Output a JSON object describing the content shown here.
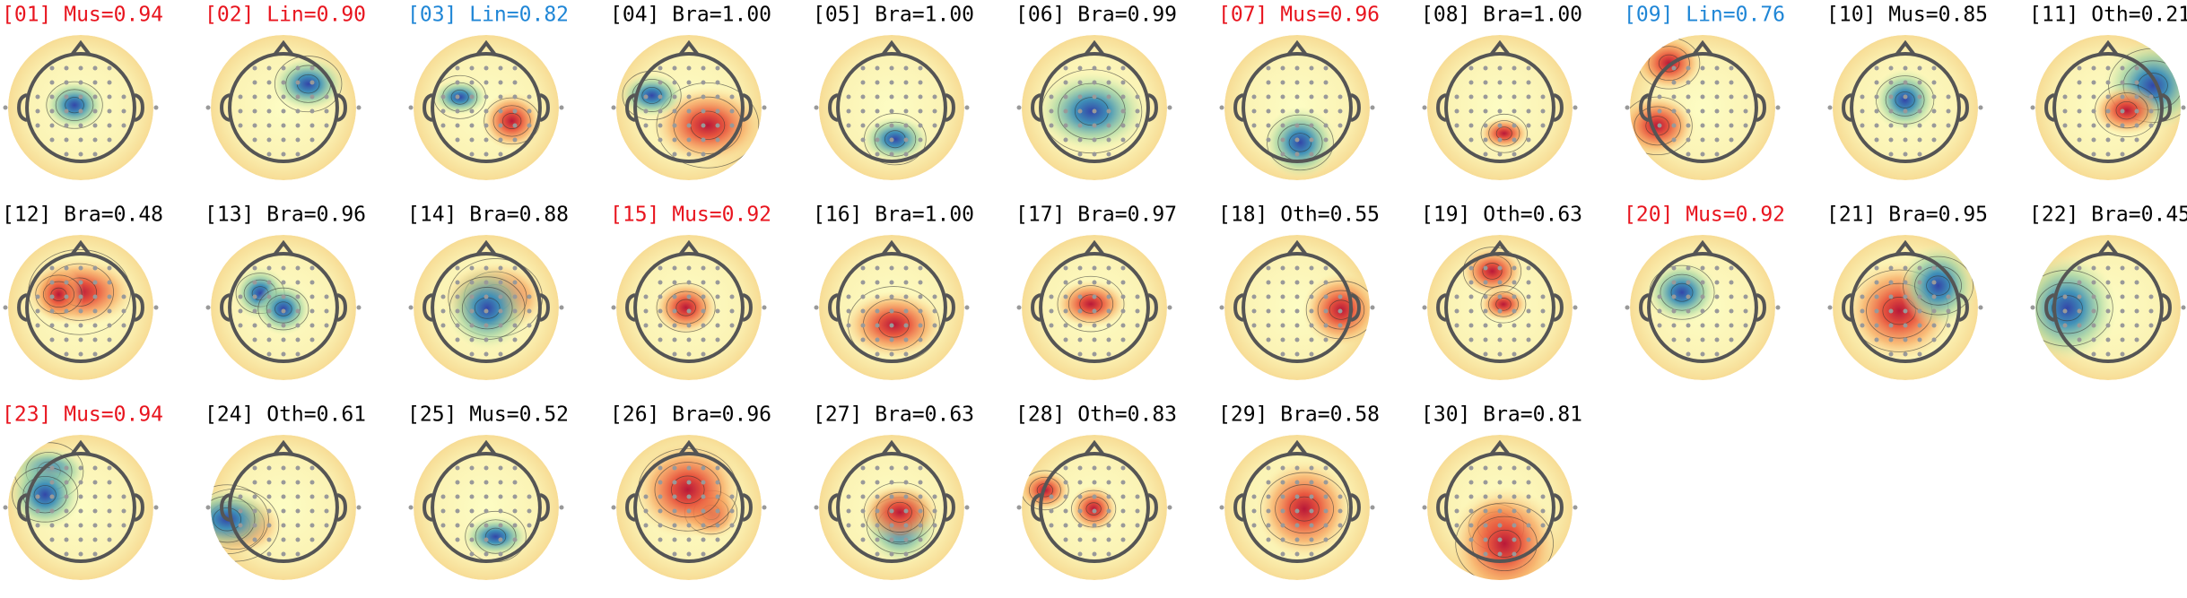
{
  "components": [
    {
      "label": "[01] Mus=0.94",
      "color": "#e8141e"
    },
    {
      "label": "[02] Lin=0.90",
      "color": "#e8141e"
    },
    {
      "label": "[03] Lin=0.82",
      "color": "#1f86d6"
    },
    {
      "label": "[04] Bra=1.00",
      "color": "#000000"
    },
    {
      "label": "[05] Bra=1.00",
      "color": "#000000"
    },
    {
      "label": "[06] Bra=0.99",
      "color": "#000000"
    },
    {
      "label": "[07] Mus=0.96",
      "color": "#e8141e"
    },
    {
      "label": "[08] Bra=1.00",
      "color": "#000000"
    },
    {
      "label": "[09] Lin=0.76",
      "color": "#1f86d6"
    },
    {
      "label": "[10] Mus=0.85",
      "color": "#000000"
    },
    {
      "label": "[11] Oth=0.21",
      "color": "#000000"
    },
    {
      "label": "[12] Bra=0.48",
      "color": "#000000"
    },
    {
      "label": "[13] Bra=0.96",
      "color": "#000000"
    },
    {
      "label": "[14] Bra=0.88",
      "color": "#000000"
    },
    {
      "label": "[15] Mus=0.92",
      "color": "#e8141e"
    },
    {
      "label": "[16] Bra=1.00",
      "color": "#000000"
    },
    {
      "label": "[17] Bra=0.97",
      "color": "#000000"
    },
    {
      "label": "[18] Oth=0.55",
      "color": "#000000"
    },
    {
      "label": "[19] Oth=0.63",
      "color": "#000000"
    },
    {
      "label": "[20] Mus=0.92",
      "color": "#e8141e"
    },
    {
      "label": "[21] Bra=0.95",
      "color": "#000000"
    },
    {
      "label": "[22] Bra=0.45",
      "color": "#000000"
    },
    {
      "label": "[23] Mus=0.94",
      "color": "#e8141e"
    },
    {
      "label": "[24] Oth=0.61",
      "color": "#000000"
    },
    {
      "label": "[25] Mus=0.52",
      "color": "#000000"
    },
    {
      "label": "[26] Bra=0.96",
      "color": "#000000"
    },
    {
      "label": "[27] Bra=0.63",
      "color": "#000000"
    },
    {
      "label": "[28] Oth=0.83",
      "color": "#000000"
    },
    {
      "label": "[29] Bra=0.58",
      "color": "#000000"
    },
    {
      "label": "[30] Bra=0.81",
      "color": "#000000"
    }
  ]
}
